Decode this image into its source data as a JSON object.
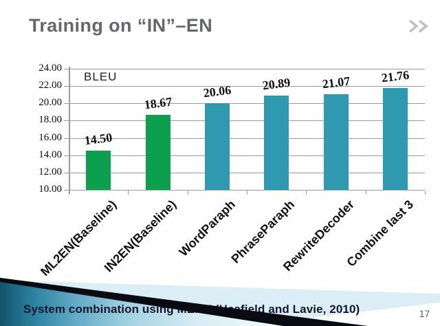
{
  "slide": {
    "title": "Training on “IN”–EN",
    "caption": "System combination using MEMT (Heafield and Lavie, 2010)",
    "page_number": "17",
    "colors": {
      "title_gray": "#63676b",
      "green_bar": "#0CA04E",
      "teal_bar": "#2F99B0",
      "gridline": "#9a9a9a",
      "caption_text": "#16162e",
      "swoosh_dark_teal": "#14536b",
      "swoosh_black": "#0a0a12",
      "swoosh_pale_blue": "#dceef5"
    }
  },
  "chart_data": {
    "type": "bar",
    "title": "",
    "legend_label": "BLEU",
    "legend_position": "inside-top-left",
    "categories": [
      "ML2EN(Baseline)",
      "IN2EN(Baseline)",
      "WordParaph",
      "PhraseParaph",
      "RewriteDecoder",
      "Combine last 3"
    ],
    "values": [
      14.5,
      18.67,
      20.06,
      20.89,
      21.07,
      21.76
    ],
    "value_labels": [
      "14.50",
      "18.67",
      "20.06",
      "20.89",
      "21.07",
      "21.76"
    ],
    "bar_colors": [
      "#0CA04E",
      "#0CA04E",
      "#2F99B0",
      "#2F99B0",
      "#2F99B0",
      "#2F99B0"
    ],
    "xlabel": "",
    "ylabel": "",
    "ylim": [
      10,
      24
    ],
    "ytick_step": 2,
    "ytick_labels": [
      "10.00",
      "12.00",
      "14.00",
      "16.00",
      "18.00",
      "20.00",
      "22.00",
      "24.00"
    ],
    "grid": true
  }
}
